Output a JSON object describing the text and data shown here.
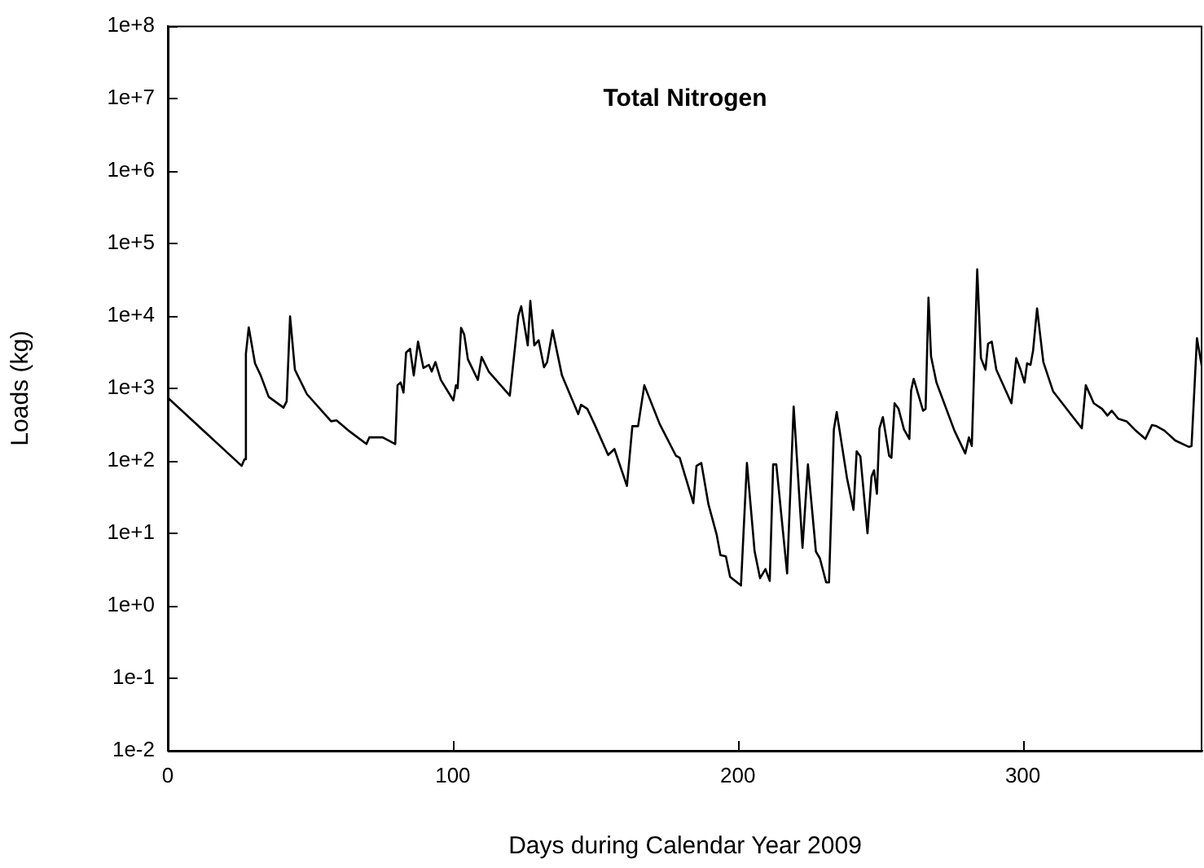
{
  "chart_data": {
    "type": "line",
    "title": "Total Nitrogen",
    "xlabel": "Days during Calendar Year 2009",
    "ylabel": "Loads (kg)",
    "log": "y",
    "grid": false,
    "legend": false,
    "marker": "none",
    "line_style": "solid",
    "xlim": [
      0,
      363
    ],
    "xticks": [
      0,
      100,
      200,
      300
    ],
    "ylim": [
      0.01,
      100000000
    ],
    "yticks": [
      {
        "value": 0.01,
        "label": "1e-2"
      },
      {
        "value": 0.1,
        "label": "1e-1"
      },
      {
        "value": 1,
        "label": "1e+0"
      },
      {
        "value": 10,
        "label": "1e+1"
      },
      {
        "value": 100,
        "label": "1e+2"
      },
      {
        "value": 1000,
        "label": "1e+3"
      },
      {
        "value": 10000,
        "label": "1e+4"
      },
      {
        "value": 100000,
        "label": "1e+5"
      },
      {
        "value": 1000000,
        "label": "1e+6"
      },
      {
        "value": 10000000,
        "label": "1e+7"
      },
      {
        "value": 100000000,
        "label": "1e+8"
      }
    ],
    "series": [
      {
        "color": "#000000",
        "x": [
          0,
          25.9,
          26.9,
          27.4,
          28.4,
          30.6,
          32.6,
          35.4,
          40.6,
          41.7,
          42.9,
          44.6,
          48.8,
          57.3,
          59.2,
          64,
          69.7,
          70.7,
          75.4,
          79.8,
          80.6,
          81.7,
          82.7,
          83.6,
          85,
          86.3,
          87.8,
          89.7,
          91.6,
          92.6,
          93.9,
          95.8,
          100.2,
          101.1,
          101.7,
          102.9,
          104,
          105.3,
          108.8,
          110.1,
          112.6,
          120,
          123,
          124,
          126.3,
          127.2,
          128.6,
          130.1,
          132,
          133.1,
          135,
          138.3,
          144,
          145,
          147.2,
          149.7,
          154.5,
          156.7,
          161.1,
          163,
          165,
          167.2,
          172.6,
          178.3,
          179.6,
          184.4,
          185.5,
          187.2,
          189.7,
          192.6,
          193.9,
          195.8,
          197.3,
          201.1,
          203.2,
          205.9,
          207.8,
          209.7,
          211.2,
          212.4,
          213.5,
          217.3,
          219.6,
          222.7,
          224.6,
          227.4,
          228.8,
          231,
          232,
          233.7,
          234.7,
          238.3,
          240.6,
          241.7,
          243,
          245.5,
          246.9,
          247.8,
          248.8,
          249.7,
          250.9,
          253.1,
          253.9,
          255,
          256.4,
          258.3,
          260.2,
          260.8,
          261.7,
          265,
          265.9,
          266.9,
          267.8,
          269.7,
          276,
          279.8,
          281.1,
          282.1,
          284,
          285.3,
          286.9,
          287.8,
          289.1,
          290.7,
          296,
          297.7,
          299.2,
          300.6,
          301.5,
          302.7,
          303.6,
          305,
          307.2,
          310.6,
          316.4,
          320.7,
          322.1,
          324.9,
          327.8,
          329.7,
          331.2,
          333.5,
          336.4,
          339.2,
          343,
          345.3,
          346.9,
          349.7,
          353.5,
          358.3,
          359.2,
          361.1,
          363
        ],
        "values": [
          740,
          85,
          105,
          3000,
          6900,
          2200,
          1500,
          760,
          540,
          660,
          9800,
          1800,
          830,
          350,
          360,
          250,
          170,
          210,
          210,
          170,
          1100,
          1200,
          870,
          3100,
          3500,
          1500,
          4400,
          1900,
          2100,
          1700,
          2300,
          1300,
          680,
          1100,
          1000,
          6800,
          5500,
          2500,
          1300,
          2700,
          1700,
          790,
          10000,
          13500,
          3900,
          16000,
          3900,
          4600,
          1950,
          2300,
          6300,
          1500,
          440,
          590,
          520,
          320,
          120,
          145,
          45,
          300,
          300,
          1100,
          320,
          117,
          110,
          26,
          85,
          93,
          25,
          9.5,
          5,
          4.8,
          2.5,
          1.9,
          93,
          5.6,
          2.4,
          3.2,
          2.2,
          89,
          89,
          2.8,
          560,
          6.3,
          89,
          5.6,
          4.5,
          2.1,
          2.1,
          270,
          470,
          58,
          21,
          135,
          115,
          10,
          60,
          74,
          35,
          280,
          400,
          117,
          110,
          620,
          520,
          270,
          200,
          930,
          1350,
          490,
          520,
          17800,
          2750,
          1200,
          260,
          126,
          210,
          160,
          43600,
          2600,
          1800,
          4100,
          4400,
          1800,
          620,
          2600,
          1800,
          1200,
          2200,
          2100,
          3300,
          12600,
          2300,
          910,
          460,
          280,
          1100,
          620,
          520,
          420,
          490,
          380,
          350,
          270,
          200,
          310,
          300,
          260,
          190,
          155,
          160,
          4900,
          1800
        ]
      }
    ]
  }
}
